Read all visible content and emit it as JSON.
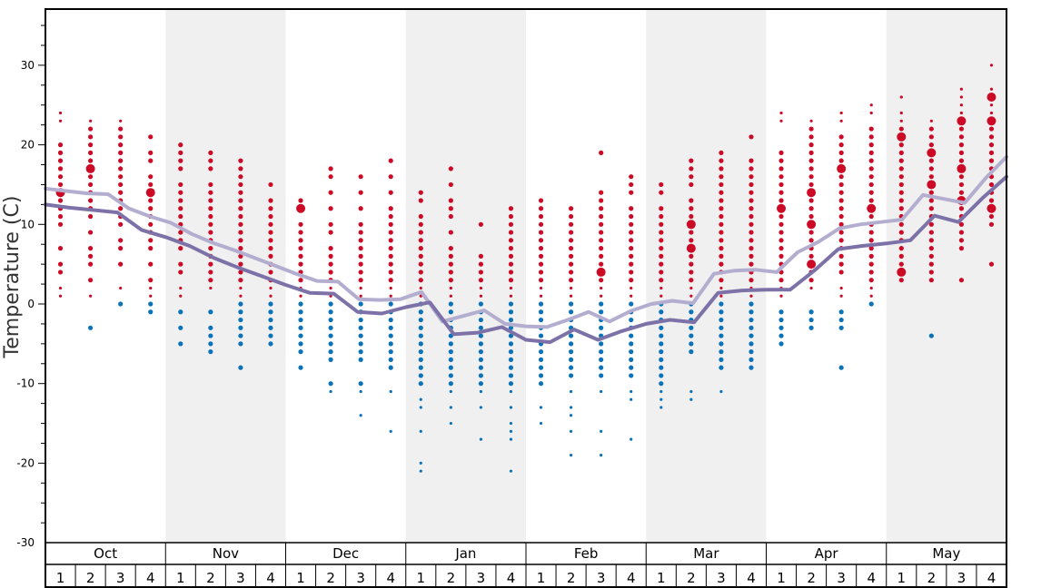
{
  "chart_data": {
    "type": "scatter",
    "ylabel": "Temperature (C)",
    "ylim": [
      -30,
      37
    ],
    "yticks": [
      -30,
      -20,
      -10,
      0,
      10,
      20,
      30
    ],
    "months": [
      "Oct",
      "Nov",
      "Dec",
      "Jan",
      "Feb",
      "Mar",
      "Apr",
      "May"
    ],
    "weeks": [
      "1",
      "2",
      "3",
      "4"
    ],
    "grid": false,
    "alternate_month_shading": true,
    "colors": {
      "warm_dots": "#cc0a26",
      "cold_dots": "#0a72b8",
      "upper_line": "#b3aecf",
      "lower_line": "#7d72a8",
      "shade": "#f0f0f0"
    },
    "series": [
      {
        "values": [
          14.5,
          14.2,
          13.9,
          13.8,
          12.0,
          11.0,
          10.2,
          8.8,
          7.7,
          6.8,
          5.8,
          4.8,
          3.8,
          2.9,
          2.8,
          0.6,
          0.5,
          0.6,
          1.5,
          -2.2,
          -1.5,
          -0.8,
          -2.5,
          -2.8,
          -2.9,
          -2.0,
          -1.0,
          -2.2,
          -0.9,
          0.0,
          0.4,
          0.1,
          3.8,
          4.2,
          4.3,
          4.0,
          6.5,
          7.8,
          9.5,
          10.0,
          10.3,
          10.6,
          13.7,
          13.2,
          12.7,
          15.8,
          18.5
        ]
      },
      {
        "values": [
          12.5,
          12.1,
          11.8,
          11.5,
          9.3,
          8.4,
          7.3,
          5.8,
          4.6,
          3.5,
          2.4,
          1.4,
          1.3,
          -1.0,
          -1.2,
          -0.4,
          0.2,
          -3.8,
          -3.6,
          -2.9,
          -4.5,
          -4.8,
          -3.2,
          -4.5,
          -3.4,
          -2.5,
          -2.0,
          -2.3,
          1.4,
          1.7,
          1.8,
          1.8,
          4.2,
          6.9,
          7.3,
          7.6,
          8.0,
          11.1,
          10.3,
          13.3,
          16.0
        ]
      }
    ],
    "distribution": [
      {
        "week": "Oct 1",
        "warm": [
          24,
          23,
          20,
          19,
          18,
          17,
          16,
          15,
          14,
          13,
          12,
          11,
          10,
          7,
          5,
          4,
          2,
          1
        ],
        "cold": [],
        "big": [
          14
        ]
      },
      {
        "week": "Oct 2",
        "warm": [
          23,
          22,
          21,
          20,
          19,
          18,
          17,
          16,
          15,
          14,
          13,
          12,
          11,
          9,
          7,
          6,
          5,
          3,
          1
        ],
        "cold": [
          -3
        ],
        "big": [
          17
        ]
      },
      {
        "week": "Oct 3",
        "warm": [
          23,
          22,
          21,
          20,
          19,
          18,
          17,
          16,
          15,
          14,
          13,
          12,
          11,
          10,
          8,
          7,
          5,
          2
        ],
        "cold": [
          0
        ],
        "big": []
      },
      {
        "week": "Oct 4",
        "warm": [
          21,
          19,
          18,
          16,
          15,
          14,
          13,
          12,
          11,
          10,
          9,
          8,
          7,
          5,
          3,
          2,
          1
        ],
        "cold": [
          0,
          -1
        ],
        "big": [
          14
        ]
      },
      {
        "week": "Nov 1",
        "warm": [
          20,
          19,
          18,
          17,
          15,
          14,
          13,
          12,
          11,
          10,
          9,
          8,
          7,
          5,
          4,
          2,
          1
        ],
        "cold": [
          -1,
          -3,
          -5
        ],
        "big": []
      },
      {
        "week": "Nov 2",
        "warm": [
          19,
          18,
          17,
          15,
          14,
          13,
          12,
          11,
          10,
          9,
          8,
          7,
          6,
          5,
          4,
          3,
          2
        ],
        "cold": [
          -1,
          -3,
          -4,
          -5,
          -6
        ],
        "big": []
      },
      {
        "week": "Nov 3",
        "warm": [
          18,
          17,
          16,
          15,
          14,
          13,
          12,
          11,
          10,
          9,
          8,
          7,
          6,
          5,
          4,
          3,
          2,
          1
        ],
        "cold": [
          0,
          -1,
          -2,
          -3,
          -4,
          -5,
          -8
        ],
        "big": []
      },
      {
        "week": "Nov 4",
        "warm": [
          15,
          13,
          12,
          11,
          10,
          9,
          8,
          7,
          6,
          5,
          4,
          3,
          2,
          1
        ],
        "cold": [
          0,
          -1,
          -2,
          -3,
          -4,
          -5
        ],
        "big": []
      },
      {
        "week": "Dec 1",
        "warm": [
          13,
          12,
          10,
          9,
          8,
          7,
          6,
          5,
          4,
          3,
          2,
          1
        ],
        "cold": [
          0,
          -1,
          -2,
          -3,
          -4,
          -5,
          -6,
          -8
        ],
        "big": [
          12
        ]
      },
      {
        "week": "Dec 2",
        "warm": [
          17,
          16,
          14,
          12,
          10,
          9,
          7,
          6,
          5,
          4,
          3,
          2,
          1
        ],
        "cold": [
          0,
          -1,
          -2,
          -3,
          -4,
          -5,
          -6,
          -7,
          -10,
          -11
        ],
        "big": []
      },
      {
        "week": "Dec 3",
        "warm": [
          16,
          14,
          12,
          10,
          9,
          8,
          7,
          6,
          5,
          4,
          3,
          2,
          1
        ],
        "cold": [
          0,
          -1,
          -2,
          -3,
          -4,
          -5,
          -6,
          -7,
          -10,
          -11,
          -14
        ],
        "big": []
      },
      {
        "week": "Dec 4",
        "warm": [
          18,
          16,
          14,
          12,
          11,
          10,
          9,
          8,
          7,
          6,
          5,
          4,
          3,
          2,
          1
        ],
        "cold": [
          0,
          -1,
          -2,
          -3,
          -4,
          -5,
          -6,
          -7,
          -8,
          -11,
          -16
        ],
        "big": []
      },
      {
        "week": "Jan 1",
        "warm": [
          14,
          13,
          11,
          10,
          9,
          8,
          7,
          6,
          5,
          4,
          3,
          2,
          1
        ],
        "cold": [
          0,
          -1,
          -2,
          -3,
          -4,
          -5,
          -6,
          -7,
          -8,
          -9,
          -10,
          -12,
          -13,
          -16,
          -20,
          -21
        ],
        "big": []
      },
      {
        "week": "Jan 2",
        "warm": [
          17,
          15,
          13,
          12,
          11,
          9,
          7,
          6,
          5,
          4,
          3,
          2,
          1
        ],
        "cold": [
          0,
          -1,
          -2,
          -3,
          -4,
          -5,
          -6,
          -7,
          -8,
          -9,
          -10,
          -11,
          -13,
          -15
        ],
        "big": []
      },
      {
        "week": "Jan 3",
        "warm": [
          10,
          6,
          5,
          4,
          3,
          2,
          1
        ],
        "cold": [
          0,
          -1,
          -2,
          -3,
          -4,
          -5,
          -6,
          -7,
          -8,
          -9,
          -10,
          -11,
          -13,
          -17
        ],
        "big": []
      },
      {
        "week": "Jan 4",
        "warm": [
          12,
          11,
          10,
          9,
          8,
          7,
          6,
          5,
          4,
          3,
          2,
          1
        ],
        "cold": [
          0,
          -1,
          -2,
          -3,
          -4,
          -5,
          -6,
          -7,
          -8,
          -9,
          -10,
          -11,
          -13,
          -15,
          -16,
          -17,
          -21
        ],
        "big": []
      },
      {
        "week": "Feb 1",
        "warm": [
          13,
          12,
          11,
          10,
          9,
          8,
          7,
          6,
          5,
          4,
          3,
          2,
          1
        ],
        "cold": [
          0,
          -1,
          -2,
          -3,
          -4,
          -5,
          -6,
          -7,
          -8,
          -9,
          -10,
          -13,
          -15
        ],
        "big": []
      },
      {
        "week": "Feb 2",
        "warm": [
          12,
          11,
          10,
          9,
          8,
          7,
          6,
          5,
          4,
          3,
          2,
          1
        ],
        "cold": [
          0,
          -1,
          -2,
          -3,
          -4,
          -5,
          -6,
          -7,
          -8,
          -9,
          -11,
          -13,
          -14,
          -16,
          -19
        ],
        "big": []
      },
      {
        "week": "Feb 3",
        "warm": [
          19,
          14,
          13,
          12,
          11,
          10,
          9,
          8,
          7,
          6,
          5,
          4,
          3,
          2,
          1
        ],
        "cold": [
          0,
          -1,
          -2,
          -3,
          -4,
          -5,
          -6,
          -7,
          -8,
          -9,
          -11,
          -16,
          -19
        ],
        "big": [
          4
        ]
      },
      {
        "week": "Feb 4",
        "warm": [
          16,
          15,
          14,
          12,
          11,
          10,
          9,
          8,
          7,
          6,
          5,
          4,
          3,
          2,
          1
        ],
        "cold": [
          0,
          -1,
          -2,
          -3,
          -4,
          -5,
          -6,
          -7,
          -8,
          -9,
          -11,
          -12,
          -17
        ],
        "big": []
      },
      {
        "week": "Mar 1",
        "warm": [
          15,
          14,
          12,
          11,
          10,
          9,
          8,
          7,
          6,
          5,
          4,
          3,
          2,
          1
        ],
        "cold": [
          0,
          -1,
          -2,
          -3,
          -4,
          -5,
          -6,
          -7,
          -8,
          -9,
          -10,
          -11,
          -12,
          -13
        ],
        "big": []
      },
      {
        "week": "Mar 2",
        "warm": [
          18,
          17,
          16,
          15,
          13,
          12,
          11,
          10,
          9,
          8,
          7,
          6,
          5,
          4,
          3,
          2,
          1
        ],
        "cold": [
          0,
          -1,
          -2,
          -3,
          -4,
          -5,
          -6,
          -11,
          -12
        ],
        "big": [
          10,
          7
        ]
      },
      {
        "week": "Mar 3",
        "warm": [
          19,
          18,
          17,
          16,
          15,
          14,
          13,
          12,
          11,
          10,
          9,
          8,
          7,
          6,
          5,
          4,
          3,
          2,
          1
        ],
        "cold": [
          0,
          -1,
          -2,
          -3,
          -4,
          -5,
          -6,
          -7,
          -8,
          -11
        ],
        "big": []
      },
      {
        "week": "Mar 4",
        "warm": [
          21,
          18,
          17,
          16,
          15,
          14,
          13,
          12,
          11,
          10,
          9,
          8,
          7,
          6,
          5,
          4,
          3,
          2,
          1
        ],
        "cold": [
          0,
          -1,
          -2,
          -3,
          -4,
          -5,
          -6,
          -7,
          -8
        ],
        "big": []
      },
      {
        "week": "Apr 1",
        "warm": [
          24,
          23,
          19,
          18,
          17,
          16,
          15,
          14,
          13,
          12,
          11,
          10,
          9,
          8,
          7,
          6,
          5,
          4,
          3,
          2,
          1
        ],
        "cold": [
          -1,
          -2,
          -3,
          -4,
          -5
        ],
        "big": [
          12
        ]
      },
      {
        "week": "Apr 2",
        "warm": [
          23,
          22,
          21,
          20,
          19,
          18,
          17,
          16,
          15,
          14,
          13,
          12,
          11,
          10,
          9,
          8,
          7,
          6,
          5,
          4,
          3,
          2
        ],
        "cold": [
          -1,
          -2,
          -3
        ],
        "big": [
          14,
          10,
          5
        ]
      },
      {
        "week": "Apr 3",
        "warm": [
          24,
          23,
          21,
          20,
          19,
          18,
          17,
          16,
          15,
          14,
          13,
          12,
          11,
          10,
          9,
          8,
          7,
          6,
          5,
          4,
          2,
          1
        ],
        "cold": [
          -1,
          -2,
          -3,
          -8
        ],
        "big": [
          17
        ]
      },
      {
        "week": "Apr 4",
        "warm": [
          25,
          24,
          22,
          21,
          20,
          19,
          18,
          17,
          16,
          15,
          14,
          13,
          12,
          11,
          10,
          9,
          8,
          7,
          6,
          5,
          4,
          3,
          2,
          1
        ],
        "cold": [
          0
        ],
        "big": [
          12
        ]
      },
      {
        "week": "May 1",
        "warm": [
          26,
          24,
          23,
          22,
          21,
          20,
          19,
          18,
          17,
          16,
          15,
          14,
          13,
          12,
          11,
          10,
          9,
          8,
          7,
          6,
          5,
          4,
          3
        ],
        "cold": [],
        "big": [
          21,
          4
        ]
      },
      {
        "week": "May 2",
        "warm": [
          23,
          22,
          21,
          20,
          19,
          18,
          17,
          16,
          15,
          14,
          13,
          12,
          11,
          10,
          9,
          8,
          7,
          6,
          5,
          4,
          3
        ],
        "cold": [
          -4
        ],
        "big": [
          19,
          15
        ]
      },
      {
        "week": "May 3",
        "warm": [
          27,
          26,
          25,
          24,
          23,
          22,
          21,
          20,
          19,
          18,
          17,
          16,
          15,
          14,
          13,
          12,
          11,
          10,
          9,
          8,
          7,
          3
        ],
        "cold": [],
        "big": [
          23,
          17,
          13
        ]
      },
      {
        "week": "May 4",
        "warm": [
          30,
          27,
          26,
          25,
          24,
          23,
          22,
          21,
          20,
          19,
          18,
          17,
          16,
          15,
          14,
          13,
          12,
          11,
          10,
          5
        ],
        "cold": [],
        "big": [
          26,
          23,
          12
        ]
      }
    ]
  }
}
